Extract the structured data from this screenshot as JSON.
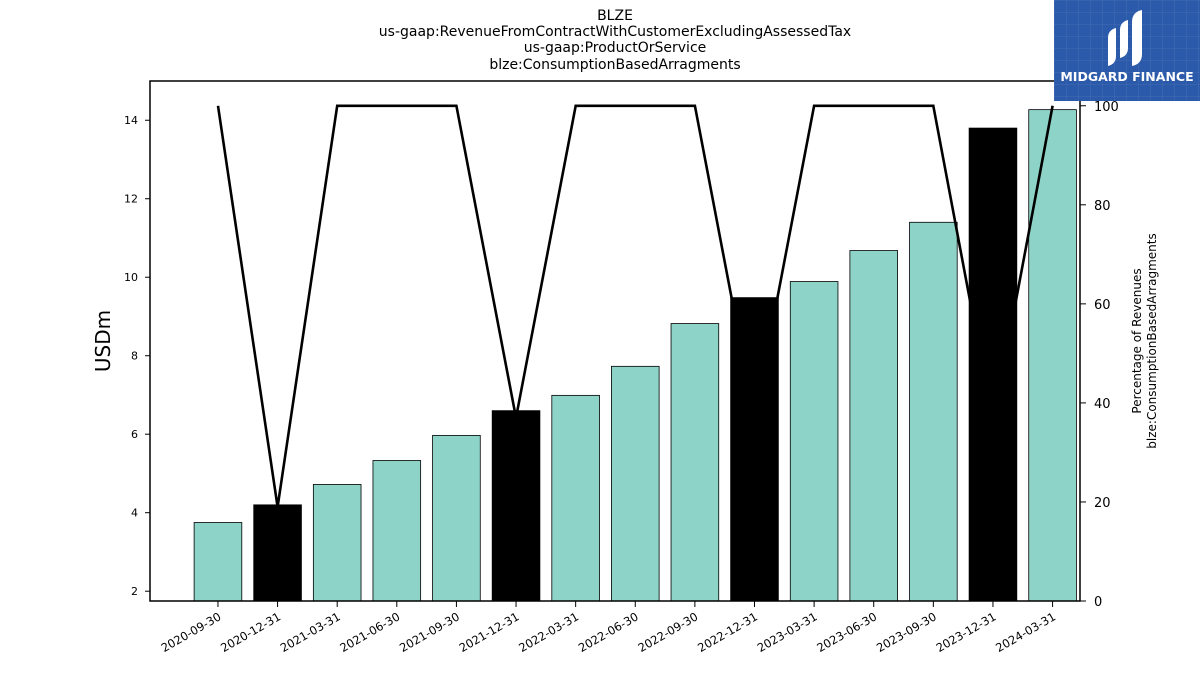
{
  "titles": [
    "BLZE",
    "us-gaap:RevenueFromContractWithCustomerExcludingAssessedTax",
    "us-gaap:ProductOrService",
    "blze:ConsumptionBasedArragments"
  ],
  "logo": {
    "text": "MIDGARD FINANCE",
    "color": "#2b5aaa"
  },
  "chart_data": {
    "type": "bar",
    "categories": [
      "2020-09-30",
      "2020-12-31",
      "2021-03-31",
      "2021-06-30",
      "2021-09-30",
      "2021-12-31",
      "2022-03-31",
      "2022-06-30",
      "2022-09-30",
      "2022-12-31",
      "2023-03-31",
      "2023-06-30",
      "2023-09-30",
      "2023-12-31",
      "2024-03-31"
    ],
    "series": [
      {
        "type": "bar",
        "axis": "left",
        "values": [
          3.75,
          4.2,
          4.72,
          5.33,
          5.97,
          6.6,
          6.99,
          7.73,
          8.82,
          9.48,
          9.89,
          10.68,
          11.4,
          13.8,
          14.27
        ],
        "highlight": [
          false,
          true,
          false,
          false,
          false,
          true,
          false,
          false,
          false,
          true,
          false,
          false,
          false,
          true,
          false
        ]
      },
      {
        "type": "line",
        "axis": "right",
        "values": [
          100,
          19,
          100,
          100,
          100,
          37,
          100,
          100,
          100,
          37,
          100,
          100,
          100,
          36,
          100
        ]
      }
    ],
    "ylabel": "USDm",
    "y2label": [
      "Percentage of Revenues",
      "blze:ConsumptionBasedArragments"
    ],
    "ylim": [
      1.75,
      15.0
    ],
    "y2lim": [
      0,
      105
    ],
    "yticks": [
      2,
      4,
      6,
      8,
      10,
      12,
      14
    ],
    "y2ticks": [
      0,
      20,
      40,
      60,
      80,
      100
    ],
    "colors": {
      "bar": "#8dd3c7",
      "bar_highlight": "#000000",
      "line": "#000000"
    },
    "grid": false,
    "legend": "none"
  }
}
